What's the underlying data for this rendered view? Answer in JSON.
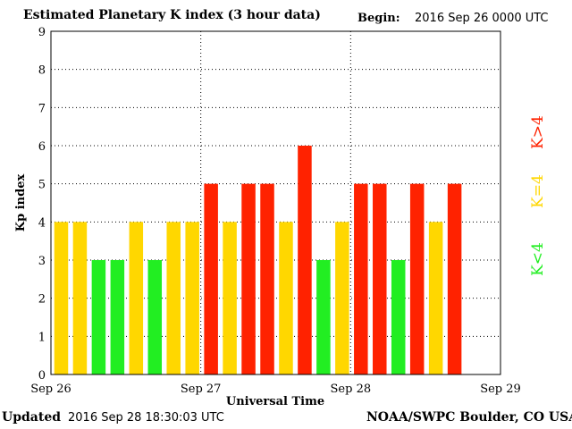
{
  "header": {
    "title": "Estimated Planetary K index (3 hour data)",
    "begin_label": "Begin:",
    "begin_value": "2016 Sep 26 0000 UTC"
  },
  "footer": {
    "updated_label": "Updated",
    "updated_value": "2016 Sep 28 18:30:03 UTC",
    "credit": "NOAA/SWPC Boulder, CO USA"
  },
  "colors": {
    "low": "#22ee22",
    "mid": "#ffd700",
    "high": "#ff2200",
    "grid": "#000000"
  },
  "legend": [
    {
      "label": "K>4",
      "color": "#ff2200"
    },
    {
      "label": "K=4",
      "color": "#ffd700"
    },
    {
      "label": "K<4",
      "color": "#22ee22"
    }
  ],
  "chart_data": {
    "type": "bar",
    "xlabel": "Universal Time",
    "ylabel": "Kp index",
    "ylim": [
      0,
      9
    ],
    "yticks": [
      "0",
      "1",
      "2",
      "3",
      "4",
      "5",
      "6",
      "7",
      "8",
      "9"
    ],
    "xticks": [
      "Sep 26",
      "Sep 27",
      "Sep 28",
      "Sep 29"
    ],
    "grid": true,
    "legend_position": "right",
    "values": [
      4,
      4,
      3,
      3,
      4,
      3,
      4,
      4,
      5,
      4,
      5,
      5,
      4,
      6,
      3,
      4,
      5,
      5,
      3,
      5,
      4,
      5
    ],
    "total_slots": 24
  }
}
